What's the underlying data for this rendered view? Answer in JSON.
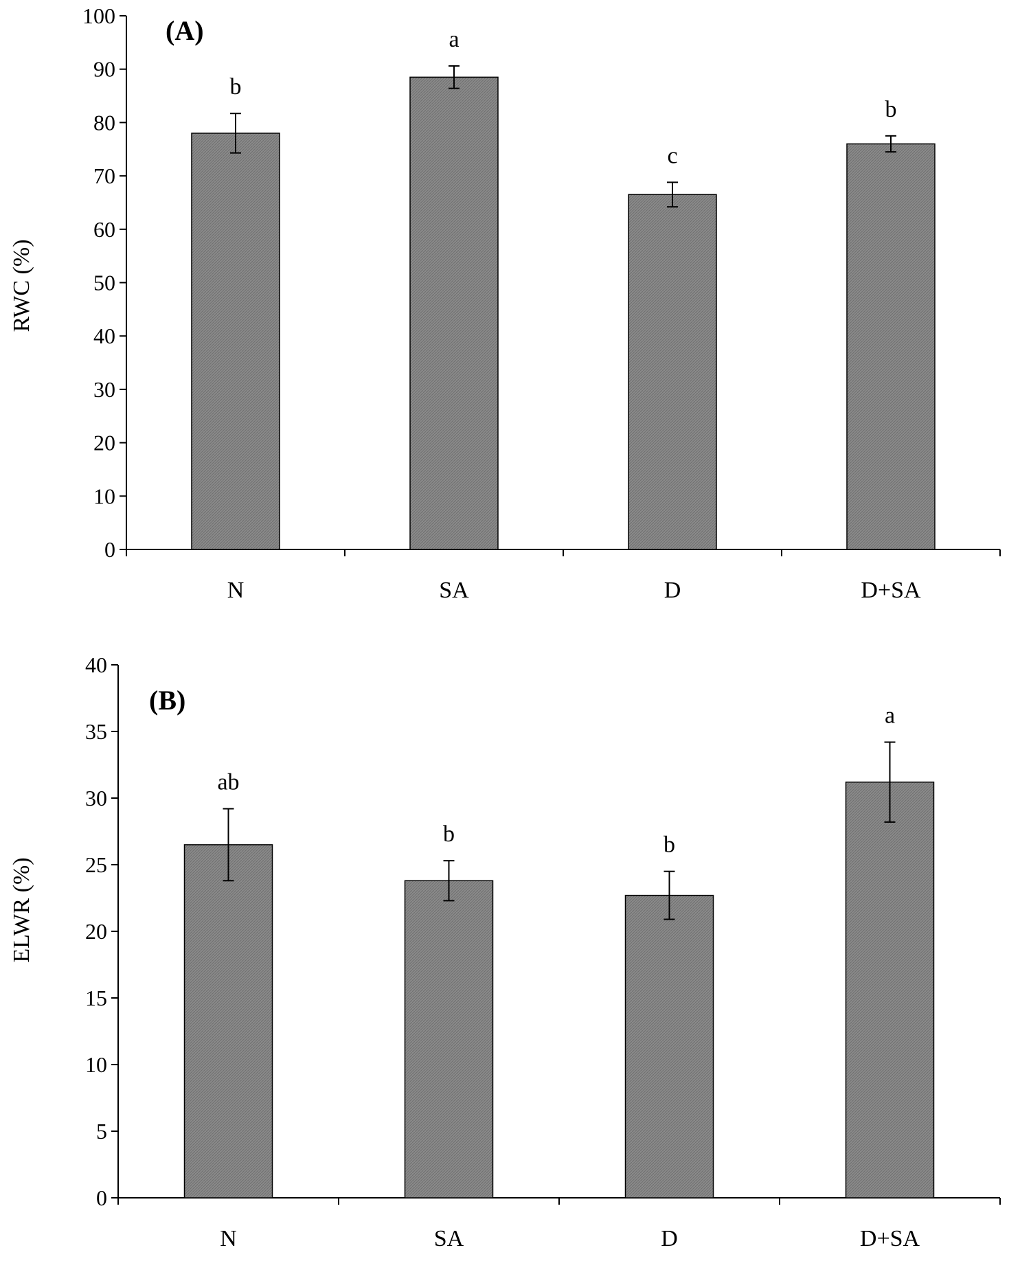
{
  "bar_color": "#8a8a8a",
  "chart_data": [
    {
      "type": "bar",
      "panel_label": "(A)",
      "title": "",
      "xlabel": "",
      "ylabel": "RWC (%)",
      "ylim": [
        0,
        100
      ],
      "yticks": [
        0,
        10,
        20,
        30,
        40,
        50,
        60,
        70,
        80,
        90,
        100
      ],
      "categories": [
        "N",
        "SA",
        "D",
        "D+SA"
      ],
      "values": [
        78,
        88.5,
        66.5,
        76
      ],
      "errors": [
        3.7,
        2.1,
        2.3,
        1.5
      ],
      "significance": [
        "b",
        "a",
        "c",
        "b"
      ],
      "grid": false
    },
    {
      "type": "bar",
      "panel_label": "(B)",
      "title": "",
      "xlabel": "",
      "ylabel": "ELWR (%)",
      "ylim": [
        0,
        40
      ],
      "yticks": [
        0,
        5,
        10,
        15,
        20,
        25,
        30,
        35,
        40
      ],
      "categories": [
        "N",
        "SA",
        "D",
        "D+SA"
      ],
      "values": [
        26.5,
        23.8,
        22.7,
        31.2
      ],
      "errors": [
        2.7,
        1.5,
        1.8,
        3.0
      ],
      "significance": [
        "ab",
        "b",
        "b",
        "a"
      ],
      "grid": false
    }
  ]
}
